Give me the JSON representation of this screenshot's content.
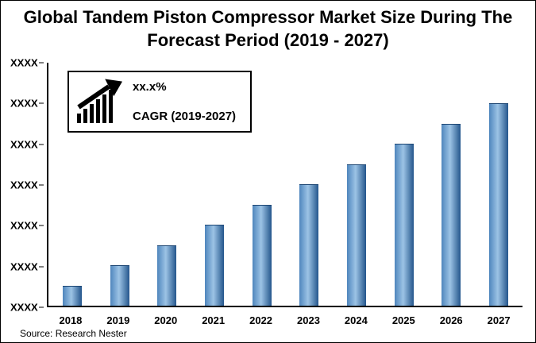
{
  "title": "Global Tandem Piston Compressor Market Size During The Forecast Period (2019 - 2027)",
  "annotation": {
    "value": "xx.x%",
    "label": "CAGR (2019-2027)"
  },
  "source": "Source: Research Nester",
  "colors": {
    "bar_edge_left": "#4f86bd",
    "bar_mid": "#9cc3e5",
    "bar_edge_right": "#24568c",
    "axis": "#000000"
  },
  "chart_data": {
    "type": "bar",
    "title": "Global Tandem Piston Compressor Market Size During The Forecast Period (2019 - 2027)",
    "categories": [
      "2018",
      "2019",
      "2020",
      "2021",
      "2022",
      "2023",
      "2024",
      "2025",
      "2026",
      "2027"
    ],
    "values": [
      0.5,
      1,
      1.5,
      2,
      2.5,
      3,
      3.5,
      4,
      4.5,
      5
    ],
    "value_note": "relative units estimated from unlabeled axis ticks; each year grows by half a tick interval",
    "xlabel": "",
    "ylabel": "",
    "ylim": [
      0,
      6
    ],
    "ytick_labels": [
      "XXXX",
      "XXXX",
      "XXXX",
      "XXXX",
      "XXXX",
      "XXXX",
      "XXXX"
    ],
    "grid": false,
    "legend": "none",
    "annotation_box": {
      "value": "xx.x%",
      "label": "CAGR (2019-2027)"
    },
    "source": "Source: Research Nester"
  }
}
